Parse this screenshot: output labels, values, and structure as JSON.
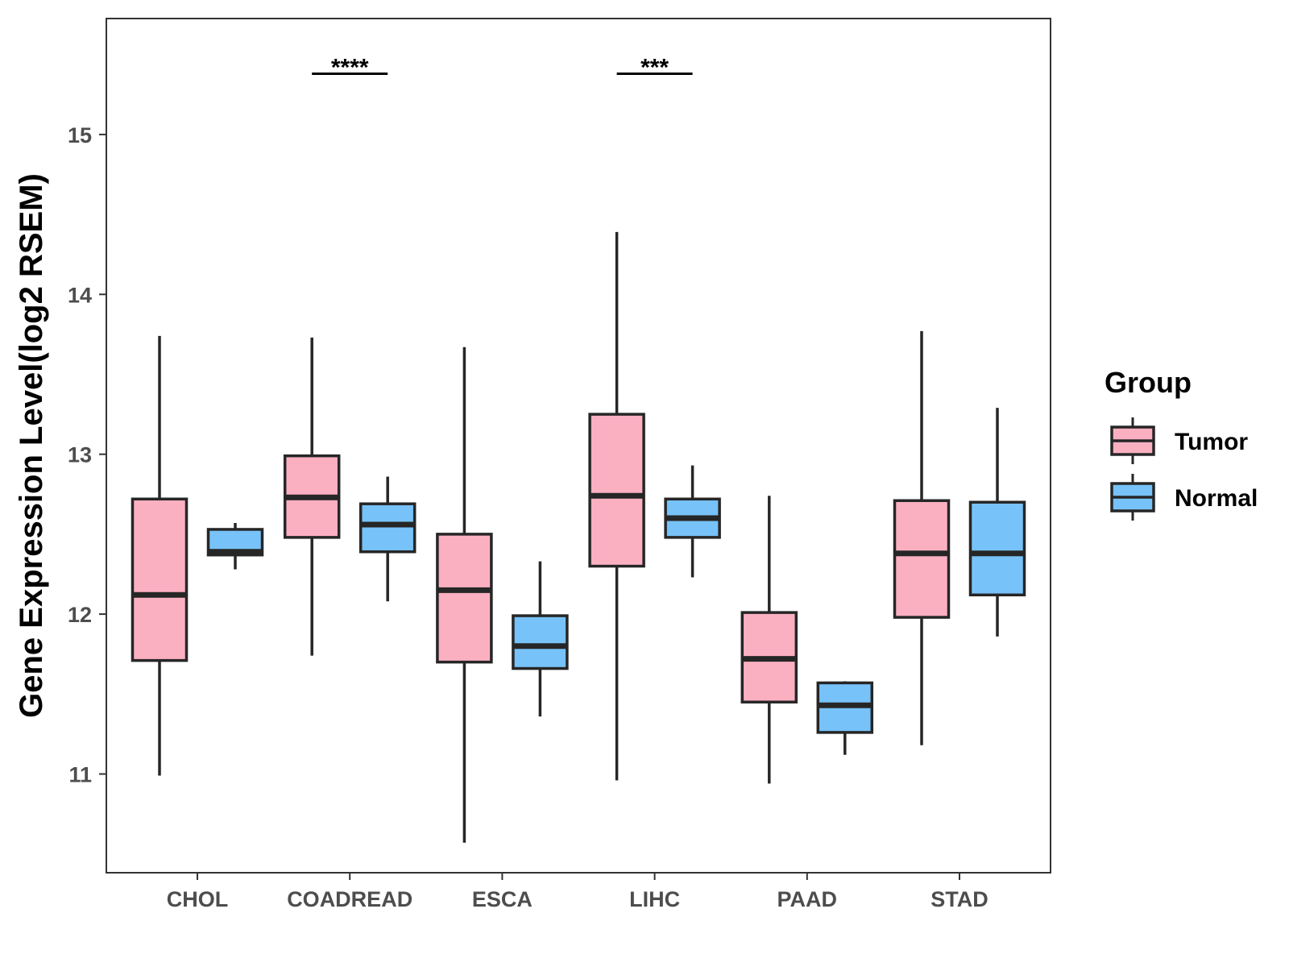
{
  "chart_data": {
    "type": "boxplot",
    "title": "",
    "xlabel": "",
    "ylabel": "Gene Expression Level(log2 RSEM)",
    "ylim": [
      10.45,
      15.8
    ],
    "yticks": [
      11,
      12,
      13,
      14,
      15
    ],
    "grid": false,
    "categories": [
      "CHOL",
      "COADREAD",
      "ESCA",
      "LIHC",
      "PAAD",
      "STAD"
    ],
    "legend": {
      "title": "Group",
      "position": "right",
      "items": [
        {
          "label": "Tumor",
          "color": "#FBB0C2"
        },
        {
          "label": "Normal",
          "color": "#77C2F8"
        }
      ]
    },
    "series": [
      {
        "name": "Tumor",
        "color": "#FBB0C2",
        "boxes": [
          {
            "min": 10.99,
            "q1": 11.71,
            "median": 12.12,
            "q3": 12.72,
            "max": 13.74
          },
          {
            "min": 11.74,
            "q1": 12.48,
            "median": 12.73,
            "q3": 12.99,
            "max": 13.73
          },
          {
            "min": 10.57,
            "q1": 11.7,
            "median": 12.15,
            "q3": 12.5,
            "max": 13.67
          },
          {
            "min": 10.96,
            "q1": 12.3,
            "median": 12.74,
            "q3": 13.25,
            "max": 14.39
          },
          {
            "min": 10.94,
            "q1": 11.45,
            "median": 11.72,
            "q3": 12.01,
            "max": 12.74
          },
          {
            "min": 11.18,
            "q1": 11.98,
            "median": 12.38,
            "q3": 12.71,
            "max": 13.77
          }
        ]
      },
      {
        "name": "Normal",
        "color": "#77C2F8",
        "boxes": [
          {
            "min": 12.28,
            "q1": 12.37,
            "median": 12.39,
            "q3": 12.53,
            "max": 12.57
          },
          {
            "min": 12.08,
            "q1": 12.39,
            "median": 12.56,
            "q3": 12.69,
            "max": 12.86
          },
          {
            "min": 11.36,
            "q1": 11.66,
            "median": 11.8,
            "q3": 11.99,
            "max": 12.33
          },
          {
            "min": 12.23,
            "q1": 12.48,
            "median": 12.6,
            "q3": 12.72,
            "max": 12.93
          },
          {
            "min": 11.12,
            "q1": 11.26,
            "median": 11.43,
            "q3": 11.57,
            "max": 11.58
          },
          {
            "min": 11.86,
            "q1": 12.12,
            "median": 12.38,
            "q3": 12.7,
            "max": 13.29
          }
        ]
      }
    ],
    "annotations": [
      {
        "category": "COADREAD",
        "label": "****",
        "y": 15.38
      },
      {
        "category": "LIHC",
        "label": "***",
        "y": 15.38
      }
    ]
  }
}
